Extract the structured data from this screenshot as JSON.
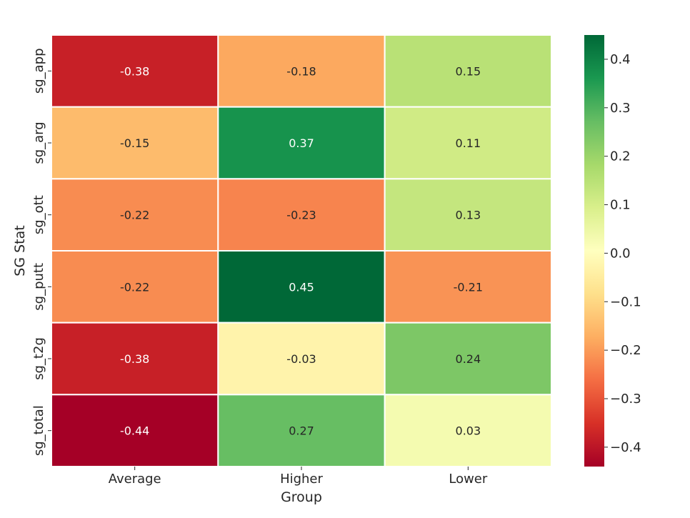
{
  "chart_data": {
    "type": "heatmap",
    "title": "",
    "xlabel": "Group",
    "ylabel": "SG Stat",
    "x_categories": [
      "Average",
      "Higher",
      "Lower"
    ],
    "y_categories": [
      "sg_app",
      "sg_arg",
      "sg_ott",
      "sg_putt",
      "sg_t2g",
      "sg_total"
    ],
    "values": [
      [
        -0.38,
        -0.18,
        0.15
      ],
      [
        -0.15,
        0.37,
        0.11
      ],
      [
        -0.22,
        -0.23,
        0.13
      ],
      [
        -0.22,
        0.45,
        -0.21
      ],
      [
        -0.38,
        -0.03,
        0.24
      ],
      [
        -0.44,
        0.27,
        0.03
      ]
    ],
    "cell_labels": [
      [
        "-0.38",
        "-0.18",
        "0.15"
      ],
      [
        "-0.15",
        "0.37",
        "0.11"
      ],
      [
        "-0.22",
        "-0.23",
        "0.13"
      ],
      [
        "-0.22",
        "0.45",
        "-0.21"
      ],
      [
        "-0.38",
        "-0.03",
        "0.24"
      ],
      [
        "-0.44",
        "0.27",
        "0.03"
      ]
    ],
    "colormap": "RdYlGn",
    "vmin": -0.44,
    "vmax": 0.45,
    "colorbar_ticks": [
      0.4,
      0.3,
      0.2,
      0.1,
      0.0,
      -0.1,
      -0.2,
      -0.3,
      -0.4
    ],
    "colorbar_tick_labels": [
      "0.4",
      "0.3",
      "0.2",
      "0.1",
      "0.0",
      "−0.1",
      "−0.2",
      "−0.3",
      "−0.4"
    ],
    "grid": false,
    "legend": "colorbar-right"
  }
}
